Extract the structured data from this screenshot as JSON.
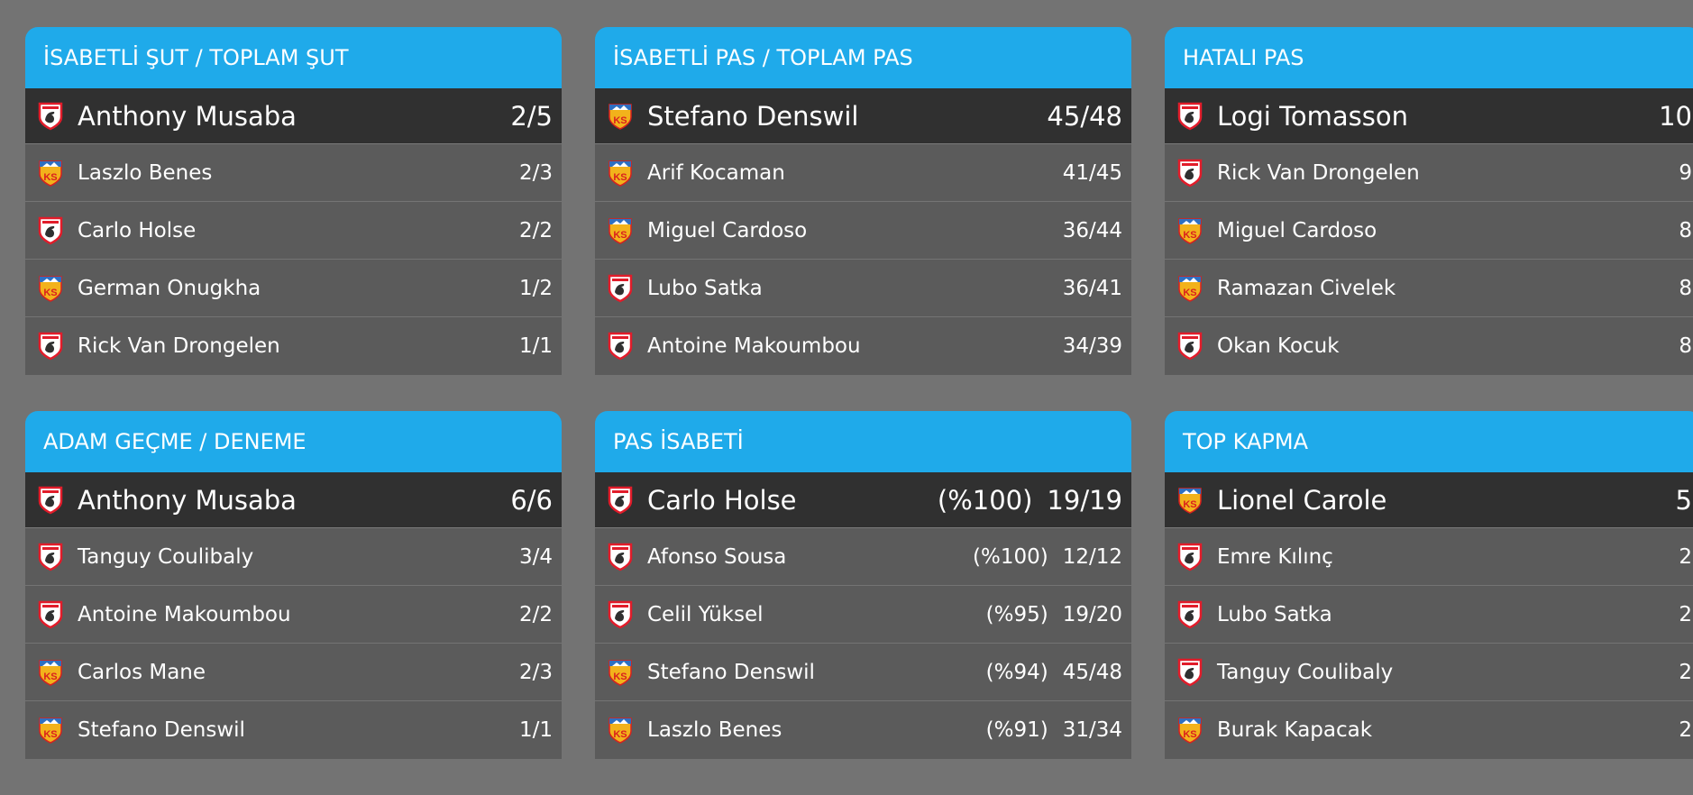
{
  "colors": {
    "background": "#737373",
    "header": "#1faaea",
    "top_row": "#303030",
    "row": "#5b5b5b"
  },
  "cards": [
    {
      "title": "İSABETLİ ŞUT / TOPLAM ŞUT",
      "rows": [
        {
          "team": "samsunspor",
          "icon": "samsunspor-logo-icon",
          "name": "Anthony Musaba",
          "pct": "",
          "value": "2/5"
        },
        {
          "team": "kayserispor",
          "icon": "kayserispor-logo-icon",
          "name": "Laszlo Benes",
          "pct": "",
          "value": "2/3"
        },
        {
          "team": "samsunspor",
          "icon": "samsunspor-logo-icon",
          "name": "Carlo Holse",
          "pct": "",
          "value": "2/2"
        },
        {
          "team": "kayserispor",
          "icon": "kayserispor-logo-icon",
          "name": "German Onugkha",
          "pct": "",
          "value": "1/2"
        },
        {
          "team": "samsunspor",
          "icon": "samsunspor-logo-icon",
          "name": "Rick Van Drongelen",
          "pct": "",
          "value": "1/1"
        }
      ]
    },
    {
      "title": "İSABETLİ PAS / TOPLAM PAS",
      "rows": [
        {
          "team": "kayserispor",
          "icon": "kayserispor-logo-icon",
          "name": "Stefano Denswil",
          "pct": "",
          "value": "45/48"
        },
        {
          "team": "kayserispor",
          "icon": "kayserispor-logo-icon",
          "name": "Arif Kocaman",
          "pct": "",
          "value": "41/45"
        },
        {
          "team": "kayserispor",
          "icon": "kayserispor-logo-icon",
          "name": "Miguel Cardoso",
          "pct": "",
          "value": "36/44"
        },
        {
          "team": "samsunspor",
          "icon": "samsunspor-logo-icon",
          "name": "Lubo Satka",
          "pct": "",
          "value": "36/41"
        },
        {
          "team": "samsunspor",
          "icon": "samsunspor-logo-icon",
          "name": "Antoine Makoumbou",
          "pct": "",
          "value": "34/39"
        }
      ]
    },
    {
      "title": "HATALI PAS",
      "rows": [
        {
          "team": "samsunspor",
          "icon": "samsunspor-logo-icon",
          "name": "Logi Tomasson",
          "pct": "",
          "value": "10"
        },
        {
          "team": "samsunspor",
          "icon": "samsunspor-logo-icon",
          "name": "Rick Van Drongelen",
          "pct": "",
          "value": "9"
        },
        {
          "team": "kayserispor",
          "icon": "kayserispor-logo-icon",
          "name": "Miguel Cardoso",
          "pct": "",
          "value": "8"
        },
        {
          "team": "kayserispor",
          "icon": "kayserispor-logo-icon",
          "name": "Ramazan Civelek",
          "pct": "",
          "value": "8"
        },
        {
          "team": "samsunspor",
          "icon": "samsunspor-logo-icon",
          "name": "Okan Kocuk",
          "pct": "",
          "value": "8"
        }
      ]
    },
    {
      "title": "ADAM GEÇME / DENEME",
      "rows": [
        {
          "team": "samsunspor",
          "icon": "samsunspor-logo-icon",
          "name": "Anthony Musaba",
          "pct": "",
          "value": "6/6"
        },
        {
          "team": "samsunspor",
          "icon": "samsunspor-logo-icon",
          "name": "Tanguy Coulibaly",
          "pct": "",
          "value": "3/4"
        },
        {
          "team": "samsunspor",
          "icon": "samsunspor-logo-icon",
          "name": "Antoine Makoumbou",
          "pct": "",
          "value": "2/2"
        },
        {
          "team": "kayserispor",
          "icon": "kayserispor-logo-icon",
          "name": "Carlos Mane",
          "pct": "",
          "value": "2/3"
        },
        {
          "team": "kayserispor",
          "icon": "kayserispor-logo-icon",
          "name": "Stefano Denswil",
          "pct": "",
          "value": "1/1"
        }
      ]
    },
    {
      "title": "PAS İSABETİ",
      "rows": [
        {
          "team": "samsunspor",
          "icon": "samsunspor-logo-icon",
          "name": "Carlo Holse",
          "pct": "(%100)",
          "value": "19/19"
        },
        {
          "team": "samsunspor",
          "icon": "samsunspor-logo-icon",
          "name": "Afonso Sousa",
          "pct": "(%100)",
          "value": "12/12"
        },
        {
          "team": "samsunspor",
          "icon": "samsunspor-logo-icon",
          "name": "Celil Yüksel",
          "pct": "(%95)",
          "value": "19/20"
        },
        {
          "team": "kayserispor",
          "icon": "kayserispor-logo-icon",
          "name": "Stefano Denswil",
          "pct": "(%94)",
          "value": "45/48"
        },
        {
          "team": "kayserispor",
          "icon": "kayserispor-logo-icon",
          "name": "Laszlo Benes",
          "pct": "(%91)",
          "value": "31/34"
        }
      ]
    },
    {
      "title": "TOP KAPMA",
      "rows": [
        {
          "team": "kayserispor",
          "icon": "kayserispor-logo-icon",
          "name": "Lionel Carole",
          "pct": "",
          "value": "5"
        },
        {
          "team": "samsunspor",
          "icon": "samsunspor-logo-icon",
          "name": "Emre Kılınç",
          "pct": "",
          "value": "2"
        },
        {
          "team": "samsunspor",
          "icon": "samsunspor-logo-icon",
          "name": "Lubo Satka",
          "pct": "",
          "value": "2"
        },
        {
          "team": "samsunspor",
          "icon": "samsunspor-logo-icon",
          "name": "Tanguy Coulibaly",
          "pct": "",
          "value": "2"
        },
        {
          "team": "kayserispor",
          "icon": "kayserispor-logo-icon",
          "name": "Burak Kapacak",
          "pct": "",
          "value": "2"
        }
      ]
    }
  ]
}
